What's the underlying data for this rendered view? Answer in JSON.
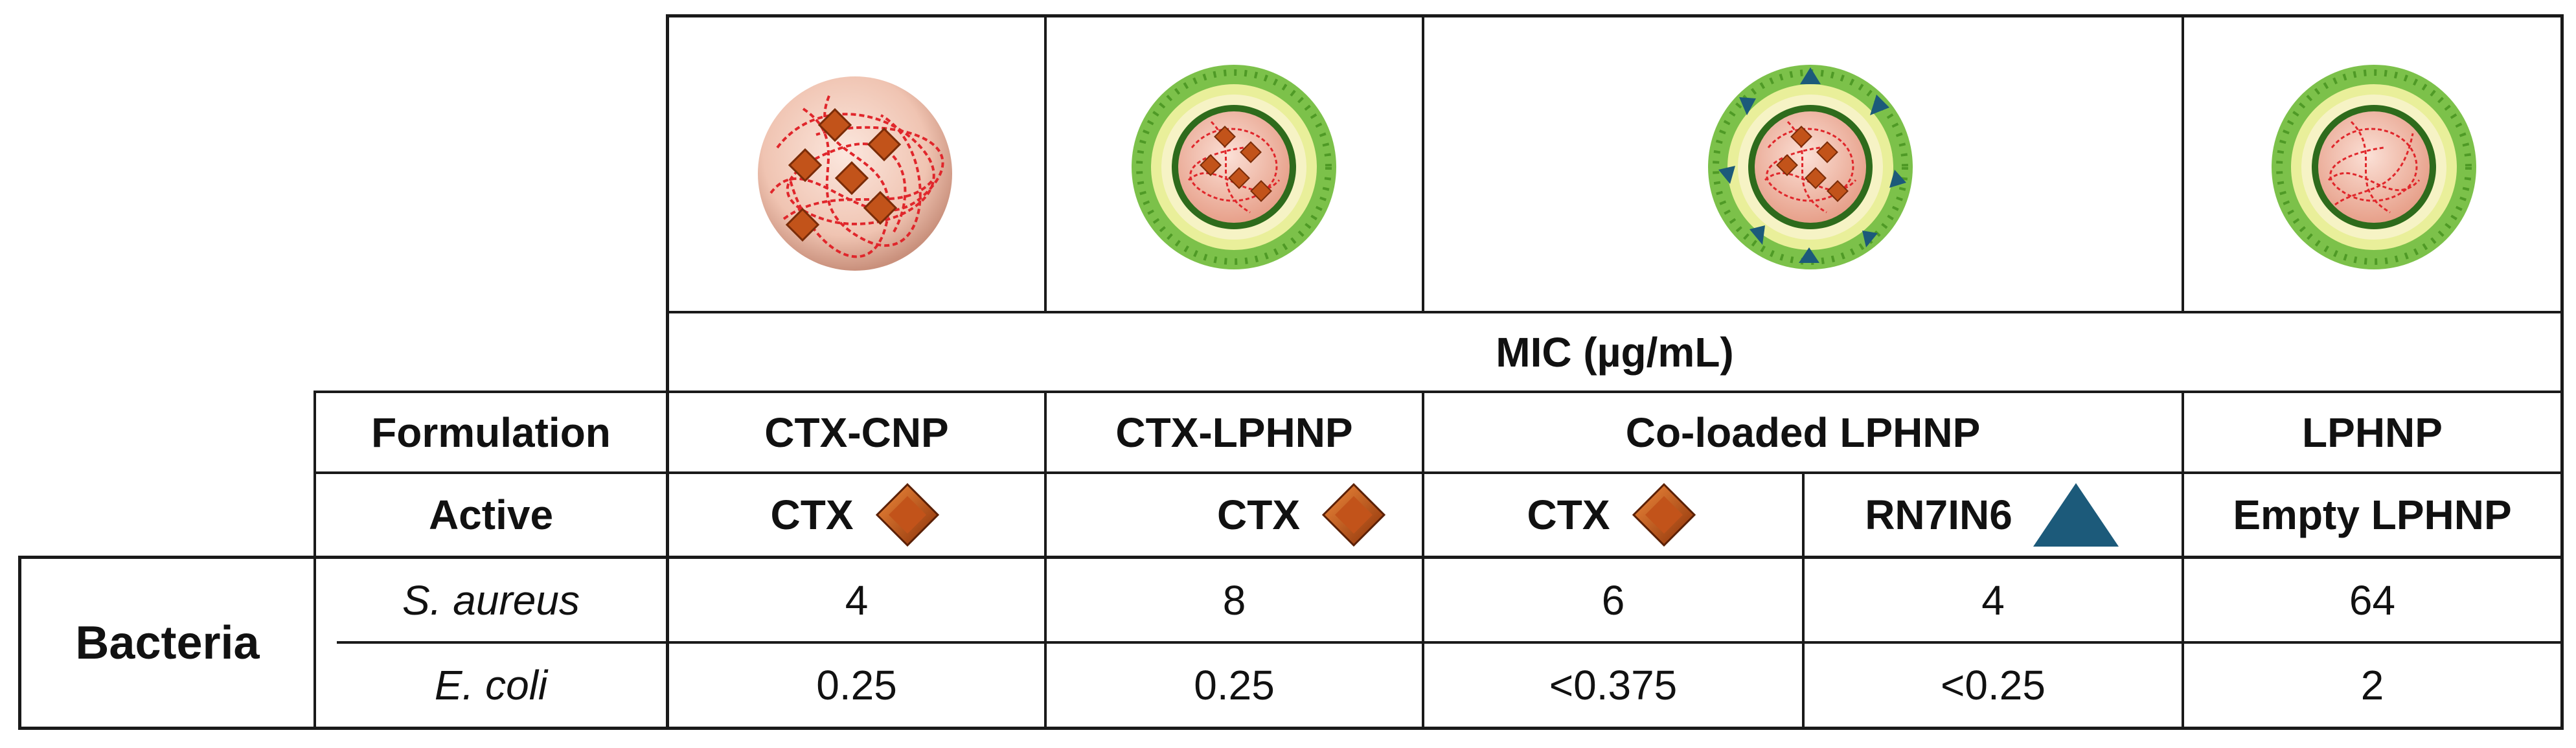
{
  "header": {
    "mic_label": "MIC (µg/mL)"
  },
  "row_labels": {
    "formulation": "Formulation",
    "active": "Active",
    "bacteria": "Bacteria"
  },
  "formulations": [
    {
      "name": "CTX-CNP",
      "icon": "chitosan-nanoparticle-ctx-icon"
    },
    {
      "name": "CTX-LPHNP",
      "icon": "lipid-polymer-hybrid-nanoparticle-ctx-icon"
    },
    {
      "name": "Co-loaded LPHNP",
      "icon": "co-loaded-lphnp-icon"
    },
    {
      "name": "LPHNP",
      "icon": "empty-lphnp-icon"
    }
  ],
  "actives": [
    {
      "label": "CTX",
      "icon": "ctx-diamond-icon"
    },
    {
      "label": "CTX",
      "icon": "ctx-diamond-icon"
    },
    {
      "label": "CTX",
      "icon": "ctx-diamond-icon"
    },
    {
      "label": "RN7IN6",
      "icon": "rn7in6-triangle-icon"
    },
    {
      "label": "Empty LPHNP",
      "icon": ""
    }
  ],
  "bacteria": [
    {
      "name": "S. aureus",
      "values": [
        "4",
        "8",
        "6",
        "4",
        "64"
      ]
    },
    {
      "name": "E. coli",
      "values": [
        "0.25",
        "0.25",
        "<0.375",
        "<0.25",
        "2"
      ]
    }
  ],
  "colors": {
    "ctx_diamond": "#c2531a",
    "rn7in6_triangle": "#1c5a7a",
    "lipid_outer": "#7cc14a",
    "lipid_inner": "#f3eea0",
    "polymer_core": "#f2b9a6",
    "polymer_strand": "#e0262b",
    "grid": "#1a1a1a"
  }
}
